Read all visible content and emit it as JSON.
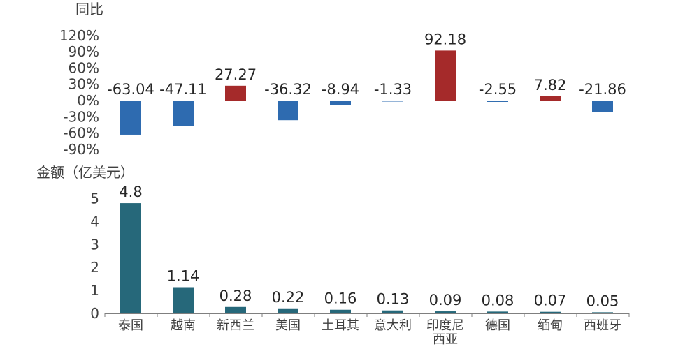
{
  "chart_data": [
    {
      "type": "bar",
      "title": "同比",
      "categories": [
        "泰国",
        "越南",
        "新西兰",
        "美国",
        "土耳其",
        "意大利",
        "印度尼西亚",
        "德国",
        "缅甸",
        "西班牙"
      ],
      "values": [
        -63.04,
        -47.11,
        27.27,
        -36.32,
        -8.94,
        -1.33,
        92.18,
        -2.55,
        7.82,
        -21.86
      ],
      "value_labels": [
        "-63.04",
        "-47.11",
        "27.27",
        "-36.32",
        "-8.94",
        "-1.33",
        "92.18",
        "-2.55",
        "7.82",
        "-21.86"
      ],
      "yticks": [
        "120%",
        "90%",
        "60%",
        "30%",
        "0%",
        "-30%",
        "-60%",
        "-90%"
      ],
      "ytick_values": [
        120,
        90,
        60,
        30,
        0,
        -30,
        -60,
        -90
      ],
      "ylim": [
        -90,
        120
      ],
      "colors": {
        "positive": "#a52a2a",
        "negative": "#2e6bb0"
      }
    },
    {
      "type": "bar",
      "title": "金额（亿美元）",
      "categories": [
        "泰国",
        "越南",
        "新西兰",
        "美国",
        "土耳其",
        "意大利",
        "印度尼西亚",
        "德国",
        "缅甸",
        "西班牙"
      ],
      "category_lines": [
        [
          "泰国"
        ],
        [
          "越南"
        ],
        [
          "新西兰"
        ],
        [
          "美国"
        ],
        [
          "土耳其"
        ],
        [
          "意大利"
        ],
        [
          "印度尼",
          "西亚"
        ],
        [
          "德国"
        ],
        [
          "缅甸"
        ],
        [
          "西班牙"
        ]
      ],
      "values": [
        4.8,
        1.14,
        0.28,
        0.22,
        0.16,
        0.13,
        0.09,
        0.08,
        0.07,
        0.05
      ],
      "value_labels": [
        "4.8",
        "1.14",
        "0.28",
        "0.22",
        "0.16",
        "0.13",
        "0.09",
        "0.08",
        "0.07",
        "0.05"
      ],
      "yticks": [
        "5",
        "4",
        "3",
        "2",
        "1",
        "0"
      ],
      "ytick_values": [
        5,
        4,
        3,
        2,
        1,
        0
      ],
      "ylim": [
        0,
        5
      ],
      "colors": {
        "bar": "#26687a"
      }
    }
  ]
}
